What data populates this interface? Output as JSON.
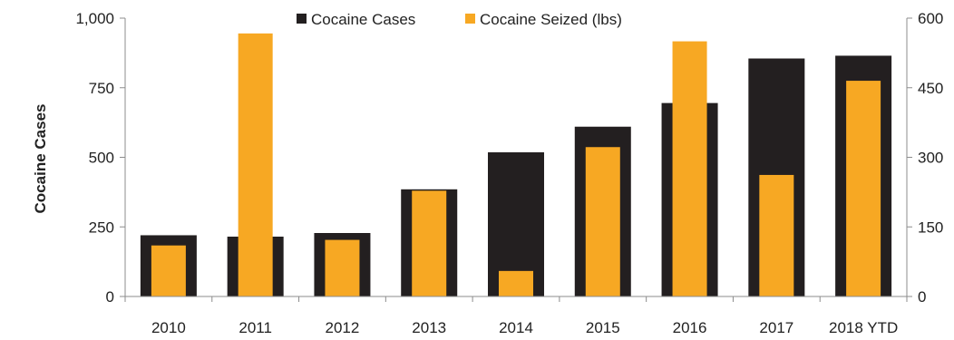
{
  "chart_data": {
    "type": "bar",
    "title": "",
    "xlabel": "",
    "ylabel": "Cocaine Cases",
    "y2label": "",
    "categories": [
      "2010",
      "2011",
      "2012",
      "2013",
      "2014",
      "2015",
      "2016",
      "2017",
      "2018 YTD"
    ],
    "series": [
      {
        "name": "Cocaine Cases",
        "axis": "left",
        "color": "#231f20",
        "values": [
          220,
          215,
          228,
          385,
          518,
          610,
          695,
          855,
          865
        ]
      },
      {
        "name": "Cocaine Seized (lbs)",
        "axis": "right",
        "color": "#f7a823",
        "values": [
          110,
          567,
          122,
          228,
          55,
          322,
          550,
          262,
          465
        ]
      }
    ],
    "ylim": [
      0,
      1000
    ],
    "y2lim": [
      0,
      600
    ],
    "yticks": [
      "0",
      "250",
      "500",
      "750",
      "1,000"
    ],
    "y2ticks": [
      "0",
      "150",
      "300",
      "450",
      "600"
    ],
    "grid": false,
    "legend_position": "top-center"
  }
}
